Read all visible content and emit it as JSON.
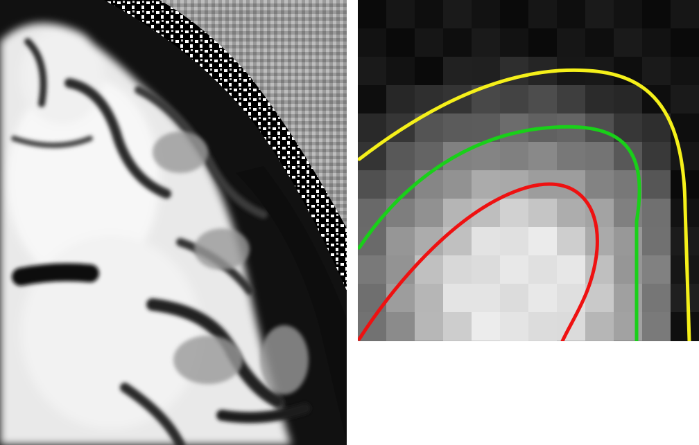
{
  "figure": {
    "left_panel": {
      "content": "mri-coronal-slice"
    },
    "right_panel": {
      "content": "pixelated-zoom-with-contours"
    },
    "contours": [
      {
        "id": "outer",
        "color": "#f5f01a"
      },
      {
        "id": "middle",
        "color": "#19d019"
      },
      {
        "id": "inner",
        "color": "#ee1111"
      }
    ]
  }
}
